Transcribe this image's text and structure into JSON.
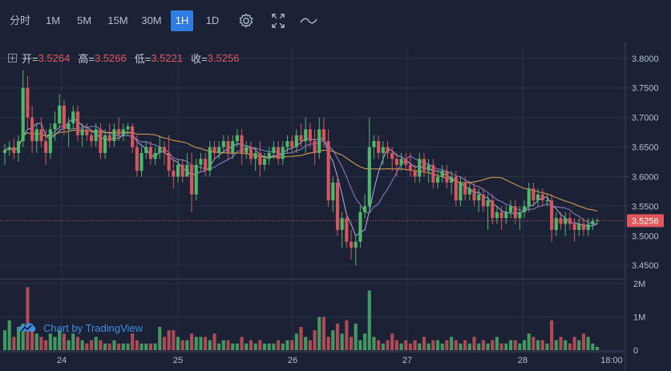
{
  "toolbar": {
    "timeframes": [
      {
        "label": "分时",
        "active": false
      },
      {
        "label": "1M",
        "active": false
      },
      {
        "label": "5M",
        "active": false
      },
      {
        "label": "15M",
        "active": false
      },
      {
        "label": "30M",
        "active": false
      },
      {
        "label": "1H",
        "active": true
      },
      {
        "label": "1D",
        "active": false
      }
    ],
    "icons": [
      "settings-icon",
      "fullscreen-icon",
      "line-style-icon"
    ]
  },
  "ohlc": {
    "open_label": "开=",
    "open": "3.5264",
    "high_label": "高=",
    "high": "3.5266",
    "low_label": "低=",
    "low": "3.5221",
    "close_label": "收=",
    "close": "3.5256"
  },
  "watermark": "Chart by TradingView",
  "colors": {
    "up": "#4fb86b",
    "down": "#d5565e",
    "ma5": "#a7b0e6",
    "ma10": "#8f7fc9",
    "ma30": "#e0a550",
    "grid": "#283049",
    "last_price": "#e0575b"
  },
  "chart_data": {
    "type": "candlestick",
    "price_axis": {
      "ylim": [
        3.43,
        3.82
      ],
      "ticks": [
        "3.8000",
        "3.7500",
        "3.7000",
        "3.6500",
        "3.6000",
        "3.5500",
        "3.5000",
        "3.4500"
      ]
    },
    "volume_axis": {
      "ticks": [
        "2M",
        "1M",
        "0"
      ]
    },
    "x_ticks": [
      "24",
      "25",
      "26",
      "27",
      "28",
      "18:00"
    ],
    "last_price": "3.5256",
    "candles": [
      [
        3.64,
        3.655,
        3.62,
        3.645,
        0.6
      ],
      [
        3.645,
        3.66,
        3.635,
        3.65,
        0.9
      ],
      [
        3.65,
        3.665,
        3.63,
        3.64,
        0.4
      ],
      [
        3.64,
        3.67,
        3.625,
        3.66,
        0.7
      ],
      [
        3.66,
        3.78,
        3.65,
        3.75,
        0.8
      ],
      [
        3.75,
        3.77,
        3.68,
        3.7,
        1.9
      ],
      [
        3.7,
        3.72,
        3.64,
        3.66,
        0.6
      ],
      [
        3.66,
        3.69,
        3.64,
        3.68,
        0.5
      ],
      [
        3.68,
        3.7,
        3.65,
        3.66,
        0.4
      ],
      [
        3.66,
        3.68,
        3.62,
        3.64,
        0.3
      ],
      [
        3.64,
        3.69,
        3.63,
        3.68,
        0.5
      ],
      [
        3.68,
        3.71,
        3.66,
        3.69,
        0.4
      ],
      [
        3.69,
        3.74,
        3.68,
        3.72,
        0.6
      ],
      [
        3.72,
        3.73,
        3.67,
        3.68,
        0.5
      ],
      [
        3.68,
        3.7,
        3.65,
        3.69,
        0.3
      ],
      [
        3.69,
        3.72,
        3.68,
        3.71,
        0.5
      ],
      [
        3.71,
        3.72,
        3.66,
        3.67,
        0.4
      ],
      [
        3.67,
        3.69,
        3.65,
        3.68,
        0.3
      ],
      [
        3.68,
        3.69,
        3.66,
        3.67,
        0.2
      ],
      [
        3.67,
        3.68,
        3.65,
        3.66,
        0.3
      ],
      [
        3.66,
        3.69,
        3.65,
        3.68,
        0.4
      ],
      [
        3.68,
        3.69,
        3.63,
        3.64,
        0.3
      ],
      [
        3.64,
        3.68,
        3.63,
        3.67,
        0.2
      ],
      [
        3.67,
        3.69,
        3.65,
        3.66,
        0.2
      ],
      [
        3.66,
        3.69,
        3.65,
        3.68,
        0.3
      ],
      [
        3.68,
        3.7,
        3.66,
        3.67,
        0.2
      ],
      [
        3.67,
        3.69,
        3.66,
        3.68,
        0.2
      ],
      [
        3.68,
        3.69,
        3.67,
        3.685,
        0.2
      ],
      [
        3.685,
        3.69,
        3.64,
        3.65,
        0.5
      ],
      [
        3.65,
        3.67,
        3.6,
        3.61,
        0.3
      ],
      [
        3.61,
        3.65,
        3.6,
        3.64,
        0.2
      ],
      [
        3.64,
        3.66,
        3.63,
        3.65,
        0.2
      ],
      [
        3.65,
        3.66,
        3.62,
        3.63,
        0.2
      ],
      [
        3.63,
        3.65,
        3.62,
        3.64,
        0.2
      ],
      [
        3.64,
        3.67,
        3.63,
        3.65,
        0.7
      ],
      [
        3.65,
        3.66,
        3.62,
        3.64,
        0.4
      ],
      [
        3.64,
        3.67,
        3.6,
        3.61,
        0.6
      ],
      [
        3.61,
        3.63,
        3.58,
        3.6,
        0.6
      ],
      [
        3.6,
        3.63,
        3.59,
        3.62,
        0.4
      ],
      [
        3.62,
        3.63,
        3.59,
        3.6,
        0.3
      ],
      [
        3.6,
        3.64,
        3.6,
        3.62,
        0.3
      ],
      [
        3.62,
        3.64,
        3.54,
        3.57,
        0.5
      ],
      [
        3.57,
        3.63,
        3.56,
        3.62,
        0.4
      ],
      [
        3.62,
        3.64,
        3.61,
        3.63,
        0.4
      ],
      [
        3.63,
        3.64,
        3.6,
        3.61,
        0.4
      ],
      [
        3.61,
        3.66,
        3.6,
        3.65,
        0.3
      ],
      [
        3.65,
        3.66,
        3.63,
        3.64,
        0.5
      ],
      [
        3.64,
        3.66,
        3.63,
        3.65,
        0.2
      ],
      [
        3.65,
        3.67,
        3.64,
        3.66,
        0.3
      ],
      [
        3.66,
        3.67,
        3.63,
        3.64,
        0.3
      ],
      [
        3.64,
        3.67,
        3.63,
        3.66,
        0.2
      ],
      [
        3.66,
        3.68,
        3.65,
        3.67,
        0.2
      ],
      [
        3.67,
        3.68,
        3.62,
        3.64,
        0.4
      ],
      [
        3.64,
        3.66,
        3.63,
        3.65,
        0.2
      ],
      [
        3.65,
        3.66,
        3.62,
        3.63,
        0.3
      ],
      [
        3.63,
        3.65,
        3.61,
        3.64,
        0.2
      ],
      [
        3.64,
        3.66,
        3.6,
        3.62,
        0.3
      ],
      [
        3.62,
        3.64,
        3.61,
        3.63,
        0.2
      ],
      [
        3.63,
        3.65,
        3.62,
        3.64,
        0.2
      ],
      [
        3.64,
        3.66,
        3.63,
        3.65,
        0.2
      ],
      [
        3.65,
        3.66,
        3.62,
        3.63,
        0.3
      ],
      [
        3.63,
        3.66,
        3.62,
        3.65,
        0.2
      ],
      [
        3.65,
        3.67,
        3.64,
        3.66,
        0.3
      ],
      [
        3.66,
        3.67,
        3.64,
        3.65,
        0.3
      ],
      [
        3.65,
        3.68,
        3.64,
        3.67,
        0.5
      ],
      [
        3.67,
        3.69,
        3.65,
        3.66,
        0.7
      ],
      [
        3.66,
        3.7,
        3.64,
        3.68,
        0.4
      ],
      [
        3.68,
        3.69,
        3.65,
        3.66,
        0.3
      ],
      [
        3.66,
        3.68,
        3.62,
        3.64,
        0.6
      ],
      [
        3.64,
        3.7,
        3.63,
        3.68,
        1.0
      ],
      [
        3.68,
        3.7,
        3.65,
        3.66,
        1.0
      ],
      [
        3.66,
        3.68,
        3.55,
        3.56,
        0.4
      ],
      [
        3.56,
        3.6,
        3.54,
        3.59,
        0.6
      ],
      [
        3.59,
        3.6,
        3.5,
        3.51,
        0.8
      ],
      [
        3.51,
        3.54,
        3.48,
        3.53,
        0.5
      ],
      [
        3.53,
        3.54,
        3.48,
        3.49,
        0.9
      ],
      [
        3.49,
        3.51,
        3.46,
        3.48,
        0.4
      ],
      [
        3.48,
        3.5,
        3.45,
        3.49,
        0.8
      ],
      [
        3.49,
        3.55,
        3.48,
        3.54,
        0.3
      ],
      [
        3.54,
        3.57,
        3.53,
        3.55,
        0.5
      ],
      [
        3.55,
        3.7,
        3.54,
        3.65,
        1.8
      ],
      [
        3.65,
        3.67,
        3.63,
        3.66,
        0.4
      ],
      [
        3.66,
        3.67,
        3.63,
        3.64,
        0.3
      ],
      [
        3.64,
        3.66,
        3.62,
        3.65,
        0.2
      ],
      [
        3.65,
        3.66,
        3.63,
        3.64,
        0.3
      ],
      [
        3.64,
        3.65,
        3.61,
        3.63,
        0.5
      ],
      [
        3.63,
        3.64,
        3.6,
        3.62,
        0.3
      ],
      [
        3.62,
        3.64,
        3.61,
        3.63,
        0.2
      ],
      [
        3.63,
        3.64,
        3.61,
        3.62,
        0.3
      ],
      [
        3.62,
        3.64,
        3.6,
        3.61,
        0.2
      ],
      [
        3.61,
        3.62,
        3.59,
        3.6,
        0.3
      ],
      [
        3.6,
        3.64,
        3.59,
        3.63,
        0.2
      ],
      [
        3.63,
        3.64,
        3.6,
        3.61,
        0.4
      ],
      [
        3.61,
        3.63,
        3.59,
        3.62,
        0.2
      ],
      [
        3.62,
        3.63,
        3.58,
        3.59,
        0.3
      ],
      [
        3.59,
        3.61,
        3.58,
        3.6,
        0.3
      ],
      [
        3.6,
        3.62,
        3.59,
        3.61,
        0.2
      ],
      [
        3.61,
        3.62,
        3.58,
        3.59,
        0.3
      ],
      [
        3.59,
        3.61,
        3.57,
        3.6,
        0.4
      ],
      [
        3.6,
        3.61,
        3.55,
        3.56,
        0.3
      ],
      [
        3.56,
        3.6,
        3.55,
        3.59,
        0.2
      ],
      [
        3.59,
        3.6,
        3.56,
        3.57,
        0.3
      ],
      [
        3.57,
        3.59,
        3.56,
        3.58,
        0.2
      ],
      [
        3.58,
        3.59,
        3.55,
        3.56,
        0.4
      ],
      [
        3.56,
        3.58,
        3.54,
        3.57,
        0.2
      ],
      [
        3.57,
        3.58,
        3.54,
        3.55,
        0.3
      ],
      [
        3.55,
        3.57,
        3.51,
        3.56,
        0.2
      ],
      [
        3.56,
        3.57,
        3.52,
        3.53,
        0.3
      ],
      [
        3.53,
        3.55,
        3.52,
        3.54,
        0.4
      ],
      [
        3.54,
        3.55,
        3.51,
        3.53,
        0.2
      ],
      [
        3.53,
        3.55,
        3.52,
        3.54,
        0.2
      ],
      [
        3.54,
        3.56,
        3.53,
        3.55,
        0.3
      ],
      [
        3.55,
        3.56,
        3.52,
        3.53,
        0.3
      ],
      [
        3.53,
        3.55,
        3.51,
        3.54,
        0.2
      ],
      [
        3.54,
        3.56,
        3.53,
        3.55,
        0.3
      ],
      [
        3.55,
        3.59,
        3.54,
        3.58,
        0.5
      ],
      [
        3.58,
        3.59,
        3.55,
        3.56,
        0.4
      ],
      [
        3.56,
        3.58,
        3.55,
        3.57,
        0.3
      ],
      [
        3.57,
        3.58,
        3.55,
        3.56,
        0.3
      ],
      [
        3.56,
        3.57,
        3.55,
        3.56,
        0.2
      ],
      [
        3.56,
        3.57,
        3.49,
        3.51,
        0.9
      ],
      [
        3.51,
        3.54,
        3.5,
        3.53,
        0.3
      ],
      [
        3.53,
        3.54,
        3.51,
        3.52,
        0.4
      ],
      [
        3.52,
        3.54,
        3.5,
        3.53,
        0.3
      ],
      [
        3.53,
        3.54,
        3.51,
        3.52,
        0.2
      ],
      [
        3.52,
        3.53,
        3.49,
        3.51,
        0.4
      ],
      [
        3.51,
        3.53,
        3.5,
        3.52,
        0.3
      ],
      [
        3.52,
        3.53,
        3.5,
        3.51,
        0.5
      ],
      [
        3.51,
        3.53,
        3.5,
        3.52,
        0.4
      ],
      [
        3.52,
        3.53,
        3.51,
        3.525,
        0.2
      ],
      [
        3.525,
        3.53,
        3.52,
        3.526,
        0.1
      ]
    ]
  }
}
